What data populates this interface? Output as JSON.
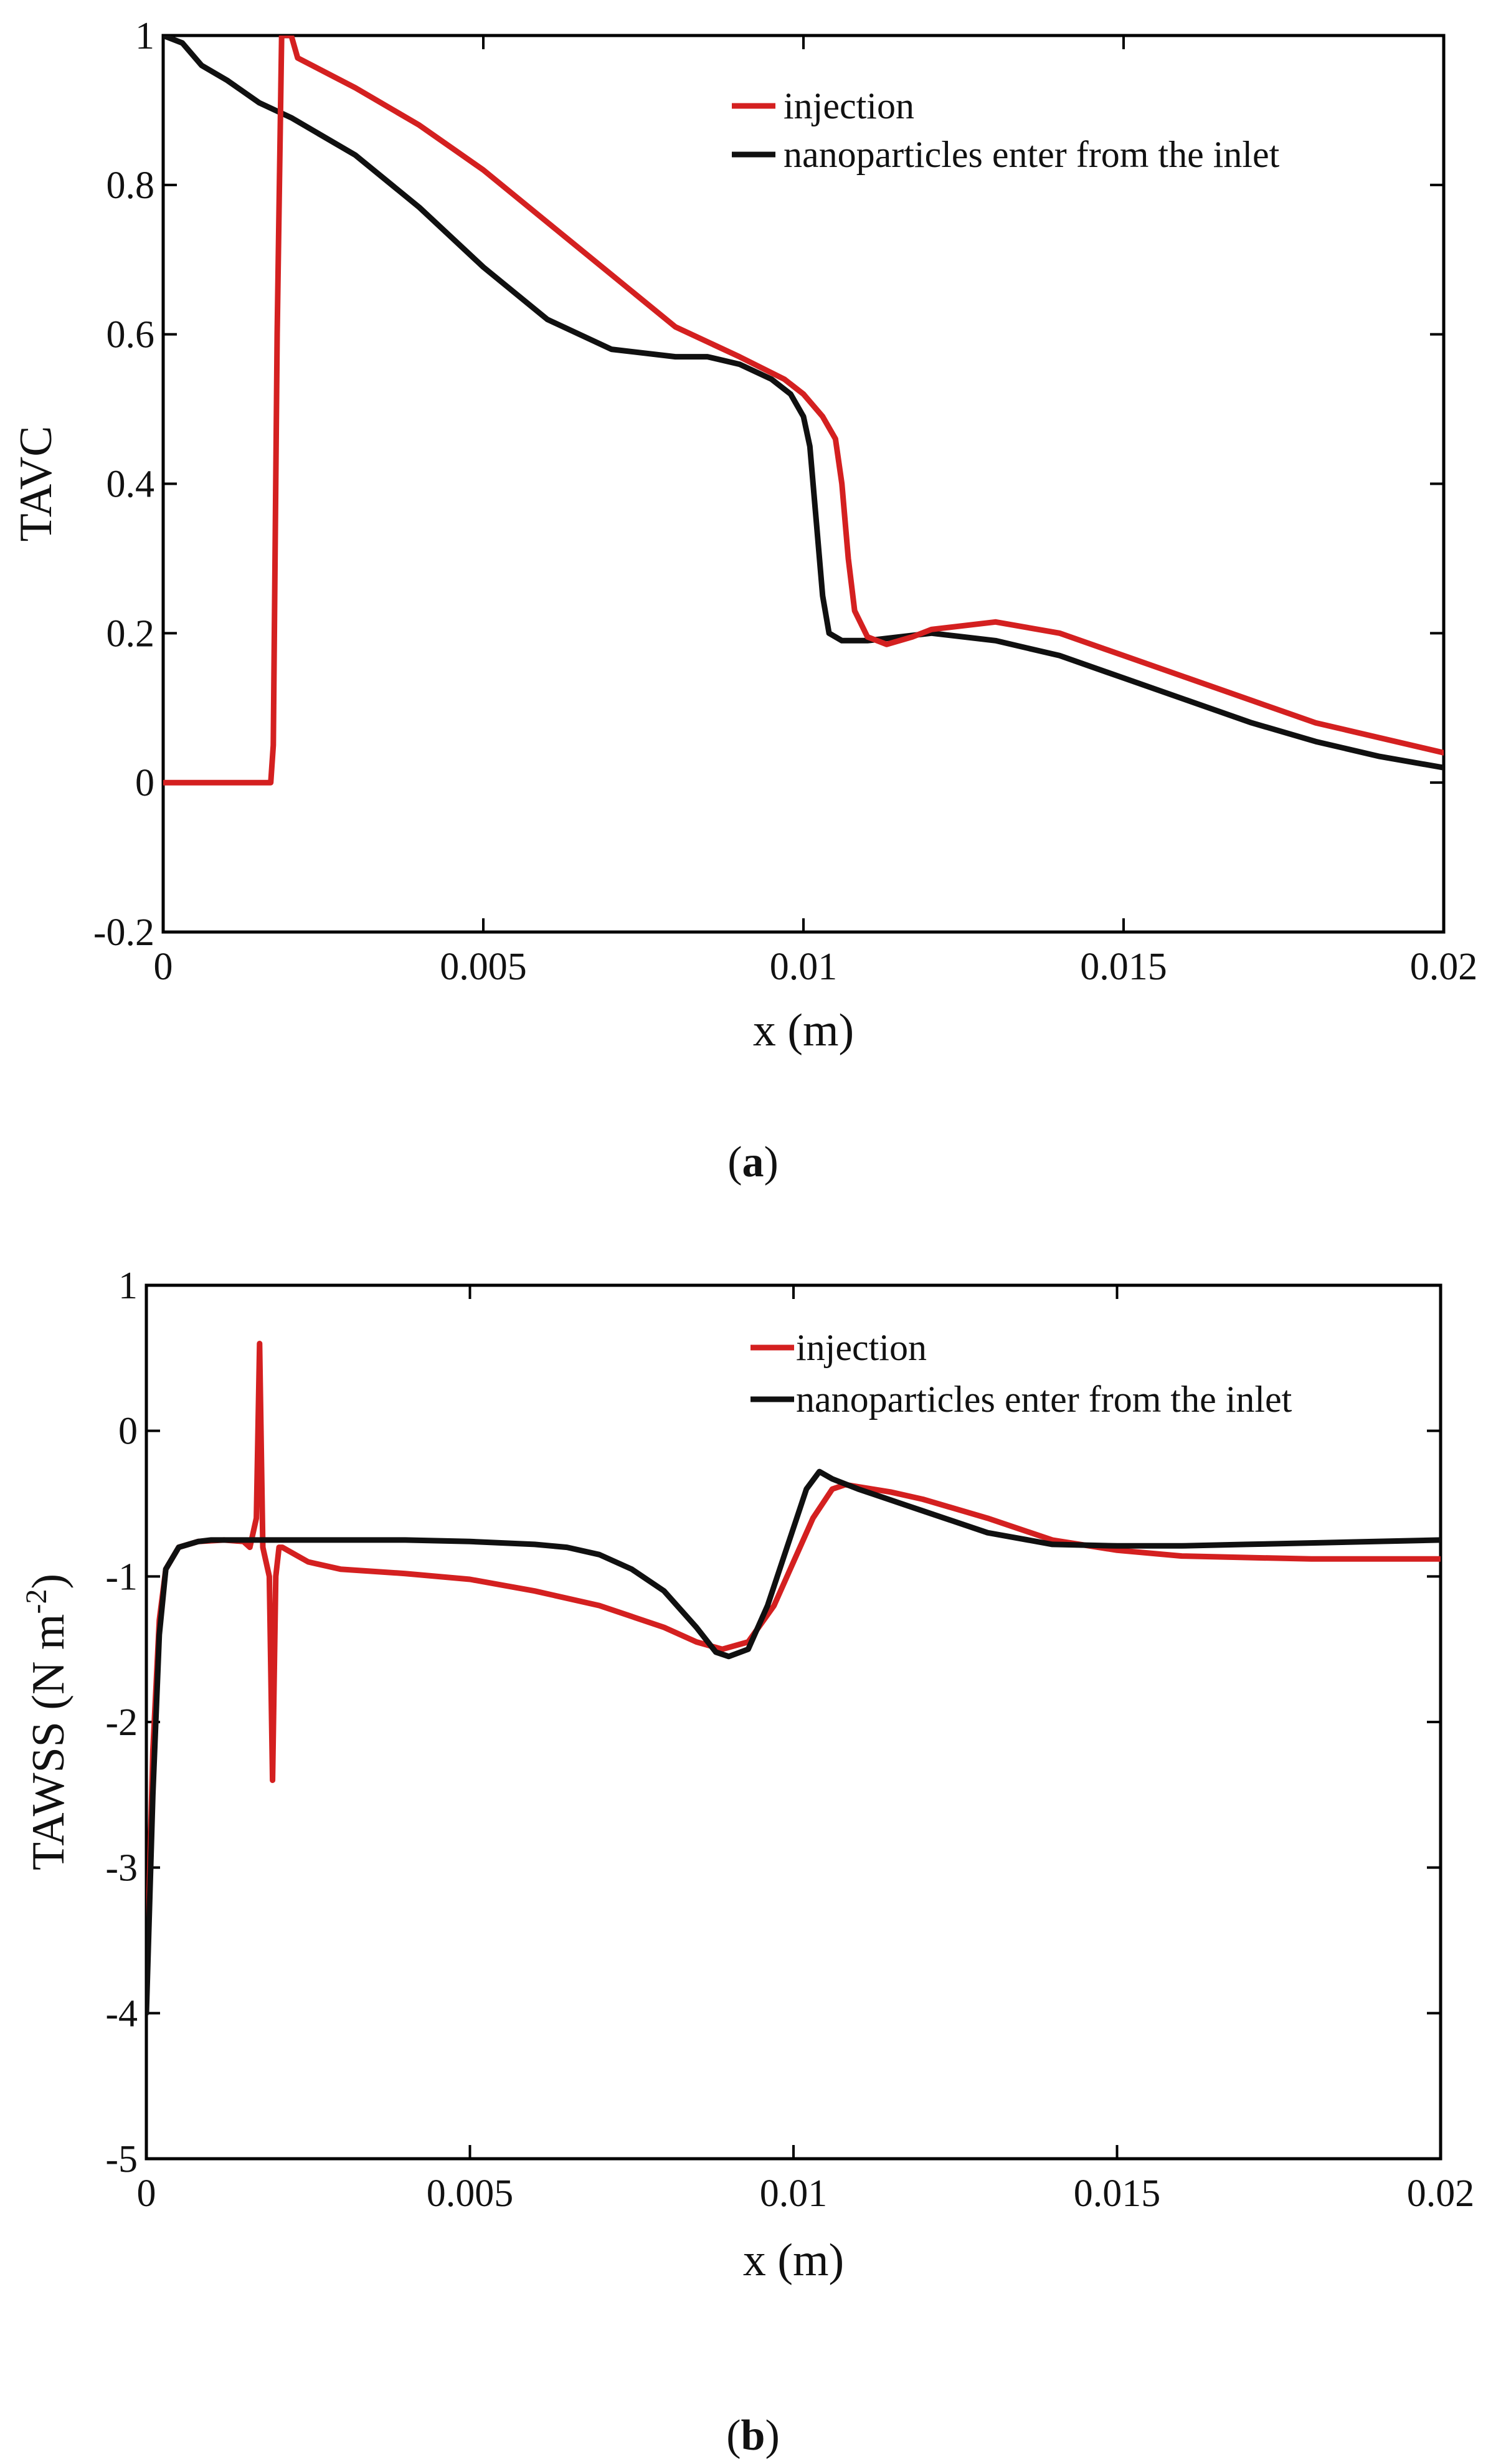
{
  "colors": {
    "injection": "#d42020",
    "inlet": "#101010",
    "axis": "#000000"
  },
  "chart_data": [
    {
      "type": "line",
      "panel": "a",
      "caption_letter": "a",
      "xlabel": "x (m)",
      "ylabel": "TAVC",
      "xlim": [
        0,
        0.02
      ],
      "ylim": [
        -0.2,
        1
      ],
      "xticks": [
        0,
        0.005,
        0.01,
        0.015,
        0.02
      ],
      "xtick_labels": [
        "0",
        "0.005",
        "0.01",
        "0.015",
        "0.02"
      ],
      "yticks": [
        -0.2,
        0,
        0.2,
        0.4,
        0.6,
        0.8,
        1
      ],
      "ytick_labels": [
        "-0.2",
        "0",
        "0.2",
        "0.4",
        "0.6",
        "0.8",
        "1"
      ],
      "legend_position": "top-right",
      "series": [
        {
          "name": "injection",
          "color_key": "injection",
          "x": [
            0,
            0.0016,
            0.00168,
            0.00172,
            0.00178,
            0.00185,
            0.002,
            0.0021,
            0.003,
            0.004,
            0.005,
            0.006,
            0.007,
            0.008,
            0.009,
            0.0097,
            0.01,
            0.0103,
            0.0105,
            0.0106,
            0.0107,
            0.0108,
            0.011,
            0.0113,
            0.0117,
            0.012,
            0.013,
            0.014,
            0.015,
            0.016,
            0.017,
            0.018,
            0.019,
            0.02
          ],
          "y": [
            0,
            0,
            0,
            0.05,
            0.6,
            1.0,
            1.0,
            0.97,
            0.93,
            0.88,
            0.82,
            0.75,
            0.68,
            0.61,
            0.57,
            0.54,
            0.52,
            0.49,
            0.46,
            0.4,
            0.3,
            0.23,
            0.195,
            0.185,
            0.195,
            0.205,
            0.215,
            0.2,
            0.17,
            0.14,
            0.11,
            0.08,
            0.06,
            0.04
          ]
        },
        {
          "name": "nanoparticles enter from the inlet",
          "color_key": "inlet",
          "x": [
            0,
            0.0003,
            0.0006,
            0.001,
            0.0015,
            0.002,
            0.003,
            0.004,
            0.005,
            0.006,
            0.007,
            0.008,
            0.0085,
            0.009,
            0.0095,
            0.0098,
            0.01,
            0.0101,
            0.0102,
            0.0103,
            0.0104,
            0.0106,
            0.011,
            0.012,
            0.013,
            0.014,
            0.015,
            0.016,
            0.017,
            0.018,
            0.019,
            0.02
          ],
          "y": [
            1.0,
            0.99,
            0.96,
            0.94,
            0.91,
            0.89,
            0.84,
            0.77,
            0.69,
            0.62,
            0.58,
            0.57,
            0.57,
            0.56,
            0.54,
            0.52,
            0.49,
            0.45,
            0.35,
            0.25,
            0.2,
            0.19,
            0.19,
            0.2,
            0.19,
            0.17,
            0.14,
            0.11,
            0.08,
            0.055,
            0.035,
            0.02
          ]
        }
      ]
    },
    {
      "type": "line",
      "panel": "b",
      "caption_letter": "b",
      "xlabel": "x (m)",
      "ylabel": "TAWSS (N m",
      "ylabel_sup": "-2",
      "ylabel_close": ")",
      "xlim": [
        0,
        0.02
      ],
      "ylim": [
        -5,
        1
      ],
      "xticks": [
        0,
        0.005,
        0.01,
        0.015,
        0.02
      ],
      "xtick_labels": [
        "0",
        "0.005",
        "0.01",
        "0.015",
        "0.02"
      ],
      "yticks": [
        -5,
        -4,
        -3,
        -2,
        -1,
        0,
        1
      ],
      "ytick_labels": [
        "-5",
        "-4",
        "-3",
        "-2",
        "-1",
        "0",
        "1"
      ],
      "legend_position": "top-right",
      "series": [
        {
          "name": "injection",
          "color_key": "injection",
          "x": [
            0,
            0.0001,
            0.0002,
            0.0003,
            0.0005,
            0.0008,
            0.0012,
            0.0015,
            0.0016,
            0.0017,
            0.00175,
            0.0018,
            0.00185,
            0.0019,
            0.00195,
            0.002,
            0.00205,
            0.0021,
            0.0023,
            0.0025,
            0.003,
            0.004,
            0.005,
            0.006,
            0.007,
            0.008,
            0.0085,
            0.0089,
            0.0093,
            0.0097,
            0.01,
            0.0103,
            0.0106,
            0.0108,
            0.0115,
            0.012,
            0.013,
            0.014,
            0.015,
            0.016,
            0.017,
            0.018,
            0.019,
            0.02
          ],
          "y": [
            -3.9,
            -2.2,
            -1.3,
            -0.95,
            -0.8,
            -0.76,
            -0.75,
            -0.76,
            -0.8,
            -0.6,
            0.6,
            -0.8,
            -0.9,
            -1.0,
            -2.4,
            -1.0,
            -0.8,
            -0.8,
            -0.85,
            -0.9,
            -0.95,
            -0.98,
            -1.02,
            -1.1,
            -1.2,
            -1.35,
            -1.45,
            -1.5,
            -1.45,
            -1.2,
            -0.9,
            -0.6,
            -0.4,
            -0.37,
            -0.42,
            -0.47,
            -0.6,
            -0.75,
            -0.82,
            -0.86,
            -0.87,
            -0.88,
            -0.88,
            -0.88
          ]
        },
        {
          "name": "nanoparticles enter from the inlet",
          "color_key": "inlet",
          "x": [
            0,
            0.0001,
            0.0002,
            0.0003,
            0.0005,
            0.0008,
            0.001,
            0.002,
            0.003,
            0.004,
            0.005,
            0.006,
            0.0065,
            0.007,
            0.0075,
            0.008,
            0.0085,
            0.0088,
            0.009,
            0.0093,
            0.0096,
            0.0099,
            0.0102,
            0.0104,
            0.0106,
            0.011,
            0.012,
            0.013,
            0.014,
            0.015,
            0.016,
            0.017,
            0.018,
            0.019,
            0.02
          ],
          "y": [
            -4.0,
            -2.5,
            -1.4,
            -0.95,
            -0.8,
            -0.76,
            -0.75,
            -0.75,
            -0.75,
            -0.75,
            -0.76,
            -0.78,
            -0.8,
            -0.85,
            -0.95,
            -1.1,
            -1.35,
            -1.52,
            -1.55,
            -1.5,
            -1.2,
            -0.8,
            -0.4,
            -0.28,
            -0.33,
            -0.4,
            -0.55,
            -0.7,
            -0.78,
            -0.79,
            -0.79,
            -0.78,
            -0.77,
            -0.76,
            -0.75
          ]
        }
      ]
    }
  ]
}
